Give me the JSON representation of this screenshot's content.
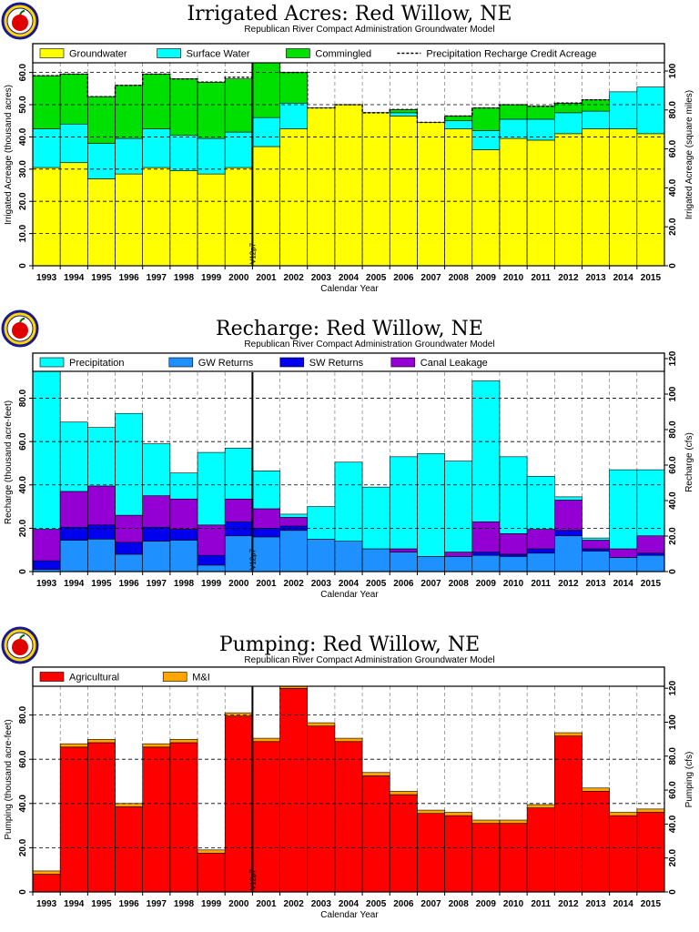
{
  "chart_data": [
    {
      "type": "stacked-bar",
      "title": "Irrigated Acres: Red Willow, NE",
      "subtitle": "Republican River Compact Administration Groundwater Model",
      "xlabel": "Calendar Year",
      "ylabel": "Irrigated Acreage (thousand acres)",
      "ylabel_right": "Irrigated Acreage (square miles)",
      "ylim": [
        0,
        63
      ],
      "yticks": [
        "0",
        "10.0",
        "20.0",
        "30.0",
        "40.0",
        "50.0",
        "60.0"
      ],
      "yticks_right": [
        "0",
        "20.0",
        "40.0",
        "60.0",
        "80.0",
        "100"
      ],
      "marker_label": "V12p7",
      "marker_year": "2001",
      "categories": [
        "1993",
        "1994",
        "1995",
        "1996",
        "1997",
        "1998",
        "1999",
        "2000",
        "2001",
        "2002",
        "2003",
        "2004",
        "2005",
        "2006",
        "2007",
        "2008",
        "2009",
        "2010",
        "2011",
        "2012",
        "2013",
        "2014",
        "2015"
      ],
      "colors": {
        "Groundwater": "#ffff00",
        "Surface Water": "#00ffff",
        "Commingled": "#00e000"
      },
      "legend": [
        "Groundwater",
        "Surface Water",
        "Commingled",
        "Precipitation Recharge Credit Acreage"
      ],
      "series": [
        {
          "name": "Groundwater",
          "values": [
            30.5,
            32.0,
            27.0,
            28.5,
            30.5,
            29.5,
            28.5,
            30.5,
            37.0,
            42.5,
            49.0,
            50.0,
            47.5,
            46.5,
            44.5,
            42.5,
            36.0,
            39.5,
            39.0,
            41.0,
            42.5,
            42.5,
            41.0
          ]
        },
        {
          "name": "Surface Water",
          "values": [
            12.0,
            12.0,
            11.0,
            11.0,
            12.0,
            11.0,
            11.0,
            11.0,
            9.0,
            8.0,
            0,
            0,
            0,
            1.0,
            0,
            2.5,
            6.0,
            6.0,
            6.5,
            6.5,
            5.5,
            11.5,
            14.5
          ]
        },
        {
          "name": "Commingled",
          "values": [
            16.5,
            15.5,
            14.5,
            16.5,
            17.0,
            17.5,
            17.5,
            16.5,
            17.5,
            9.5,
            0,
            0,
            0,
            1.0,
            0,
            1.5,
            7.0,
            4.5,
            4.0,
            3.0,
            3.5,
            0,
            0
          ]
        }
      ],
      "dashed_series": {
        "name": "Precipitation Recharge Credit Acreage",
        "values": [
          59.0,
          59.5,
          52.5,
          56.0,
          59.5,
          58.0,
          57.0,
          58.5,
          63.5,
          60.0,
          49.0,
          50.0,
          47.5,
          48.5,
          44.5,
          46.5,
          49.0,
          50.0,
          49.5,
          50.5,
          51.5,
          0,
          0
        ]
      }
    },
    {
      "type": "stacked-bar",
      "title": "Recharge: Red Willow, NE",
      "subtitle": "Republican River Compact Administration Groundwater Model",
      "xlabel": "Calendar Year",
      "ylabel": "Recharge (thousand acre-feet)",
      "ylabel_right": "Recharge (cfs)",
      "ylim": [
        0,
        92
      ],
      "yticks": [
        "0",
        "20.0",
        "40.0",
        "60.0",
        "80.0"
      ],
      "yticks_right": [
        "0",
        "20.0",
        "40.0",
        "60.0",
        "80.0",
        "100",
        "120"
      ],
      "marker_label": "V12p7",
      "marker_year": "2001",
      "categories": [
        "1993",
        "1994",
        "1995",
        "1996",
        "1997",
        "1998",
        "1999",
        "2000",
        "2001",
        "2002",
        "2003",
        "2004",
        "2005",
        "2006",
        "2007",
        "2008",
        "2009",
        "2010",
        "2011",
        "2012",
        "2013",
        "2014",
        "2015"
      ],
      "colors": {
        "GW Returns": "#1e90ff",
        "SW Returns": "#0000ee",
        "Canal Leakage": "#9400d3",
        "Precipitation": "#00ffff"
      },
      "legend": [
        "Precipitation",
        "GW Returns",
        "SW Returns",
        "Canal Leakage"
      ],
      "series": [
        {
          "name": "GW Returns",
          "values": [
            1.0,
            14.5,
            15.0,
            8.0,
            14.0,
            14.5,
            3.0,
            16.5,
            16.0,
            19.0,
            15.0,
            14.0,
            10.5,
            9.0,
            7.0,
            7.0,
            7.5,
            7.0,
            8.5,
            16.5,
            9.5,
            6.5,
            7.5
          ]
        },
        {
          "name": "SW Returns",
          "values": [
            4.0,
            6.0,
            6.5,
            5.5,
            6.5,
            5.0,
            4.5,
            6.5,
            4.0,
            2.0,
            0,
            0,
            0,
            0,
            0,
            0,
            1.5,
            1.0,
            2.0,
            2.5,
            1.0,
            0,
            1.0
          ]
        },
        {
          "name": "Canal Leakage",
          "values": [
            14.5,
            16.5,
            18.0,
            12.5,
            14.5,
            14.0,
            14.0,
            10.5,
            9.0,
            4.0,
            0,
            0,
            0,
            1.5,
            0,
            2.0,
            14.0,
            9.5,
            9.0,
            14.0,
            4.0,
            4.0,
            8.0
          ]
        },
        {
          "name": "Precipitation",
          "values": [
            73.0,
            32.0,
            27.0,
            47.0,
            24.0,
            12.0,
            33.5,
            23.5,
            17.5,
            1.5,
            15.0,
            36.5,
            28.5,
            42.5,
            47.5,
            42.0,
            65.0,
            35.5,
            24.5,
            1.5,
            1.0,
            36.5,
            30.5
          ]
        }
      ]
    },
    {
      "type": "stacked-bar",
      "title": "Pumping: Red Willow, NE",
      "subtitle": "Republican River Compact Administration Groundwater Model",
      "xlabel": "Calendar Year",
      "ylabel": "Pumping (thousand acre-feet)",
      "ylabel_right": "Pumping (cfs)",
      "ylim": [
        0,
        93
      ],
      "yticks": [
        "0",
        "20.0",
        "40.0",
        "60.0",
        "80.0"
      ],
      "yticks_right": [
        "0",
        "20.0",
        "40.0",
        "60.0",
        "80.0",
        "100",
        "120"
      ],
      "marker_label": "V12p7",
      "marker_year": "2001",
      "categories": [
        "1993",
        "1994",
        "1995",
        "1996",
        "1997",
        "1998",
        "1999",
        "2000",
        "2001",
        "2002",
        "2003",
        "2004",
        "2005",
        "2006",
        "2007",
        "2008",
        "2009",
        "2010",
        "2011",
        "2012",
        "2013",
        "2014",
        "2015"
      ],
      "colors": {
        "Agricultural": "#ff0000",
        "M&I": "#ffa500"
      },
      "legend": [
        "Agricultural",
        "M&I"
      ],
      "series": [
        {
          "name": "Agricultural",
          "values": [
            8.0,
            65.5,
            67.5,
            38.5,
            65.5,
            67.5,
            17.5,
            79.5,
            68.0,
            92.0,
            75.0,
            68.0,
            52.5,
            44.0,
            35.5,
            34.5,
            31.0,
            31.0,
            38.0,
            70.5,
            45.5,
            34.5,
            36.0
          ]
        },
        {
          "name": "M&I",
          "values": [
            1.5,
            1.5,
            1.5,
            1.5,
            1.5,
            1.5,
            1.5,
            1.5,
            1.5,
            1.5,
            1.5,
            1.5,
            1.5,
            1.5,
            1.5,
            1.5,
            1.5,
            1.5,
            1.5,
            1.5,
            1.5,
            1.5,
            1.5
          ]
        }
      ]
    }
  ]
}
